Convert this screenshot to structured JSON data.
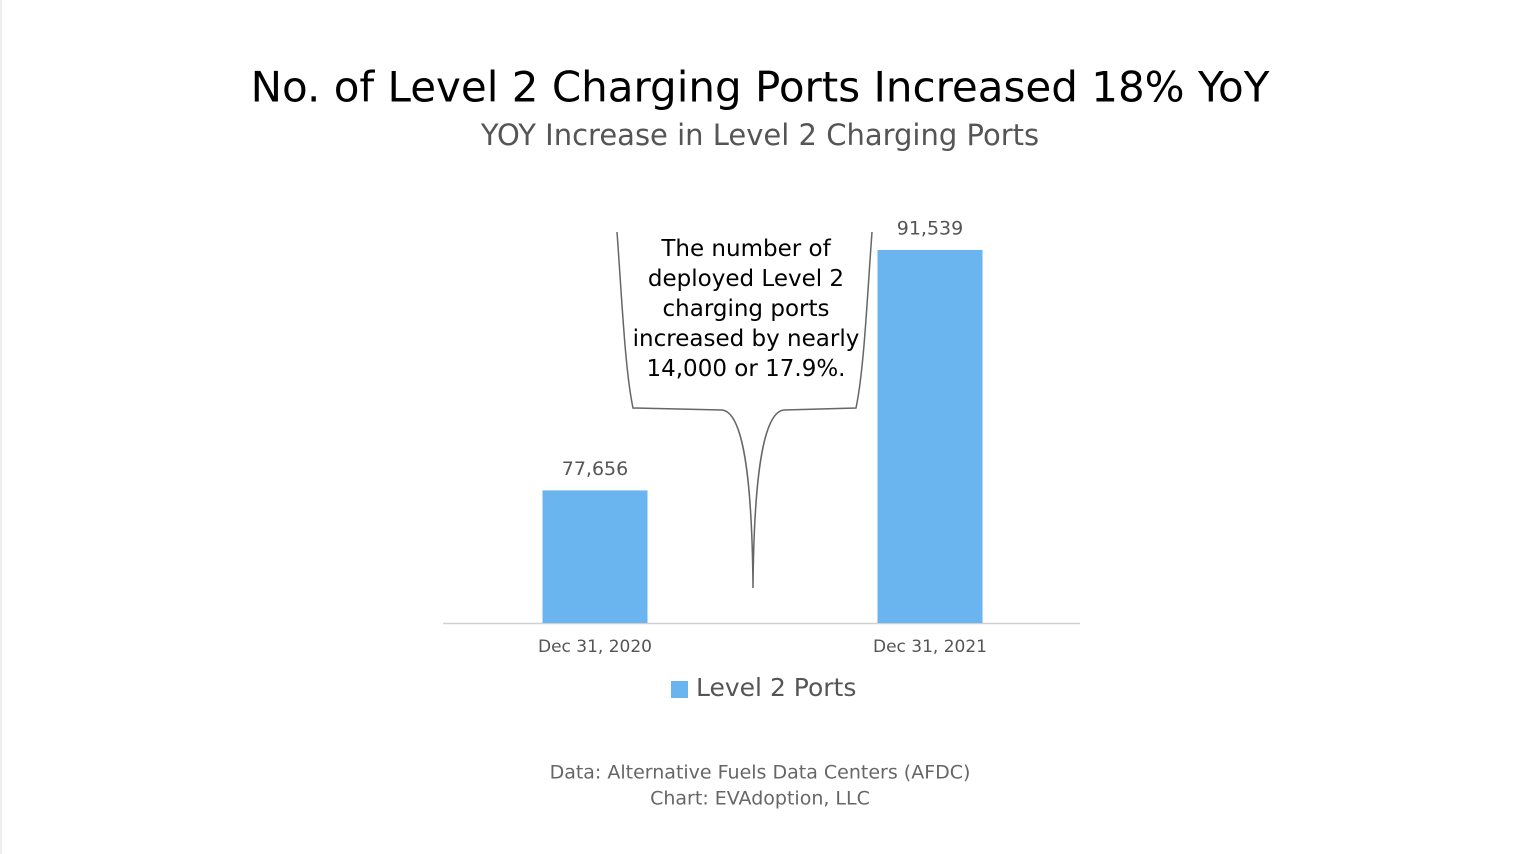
{
  "chart_data": {
    "type": "bar",
    "title": "No. of Level 2 Charging Ports Increased 18% YoY",
    "subtitle": "YOY Increase in Level 2 Charging Ports",
    "categories": [
      "Dec 31, 2020",
      "Dec 31, 2021"
    ],
    "series": [
      {
        "name": "Level 2 Ports",
        "color": "#6ab4ef",
        "values": [
          77656,
          91539
        ],
        "value_labels": [
          "77,656",
          "91,539"
        ]
      }
    ],
    "ylim": [
      70000,
      95000
    ],
    "annotation": "The number of deployed Level 2 charging ports increased by nearly 14,000 or 17.9%.",
    "source": [
      "Data: Alternative Fuels Data Centers (AFDC)",
      "Chart: EVAdoption, LLC"
    ]
  }
}
